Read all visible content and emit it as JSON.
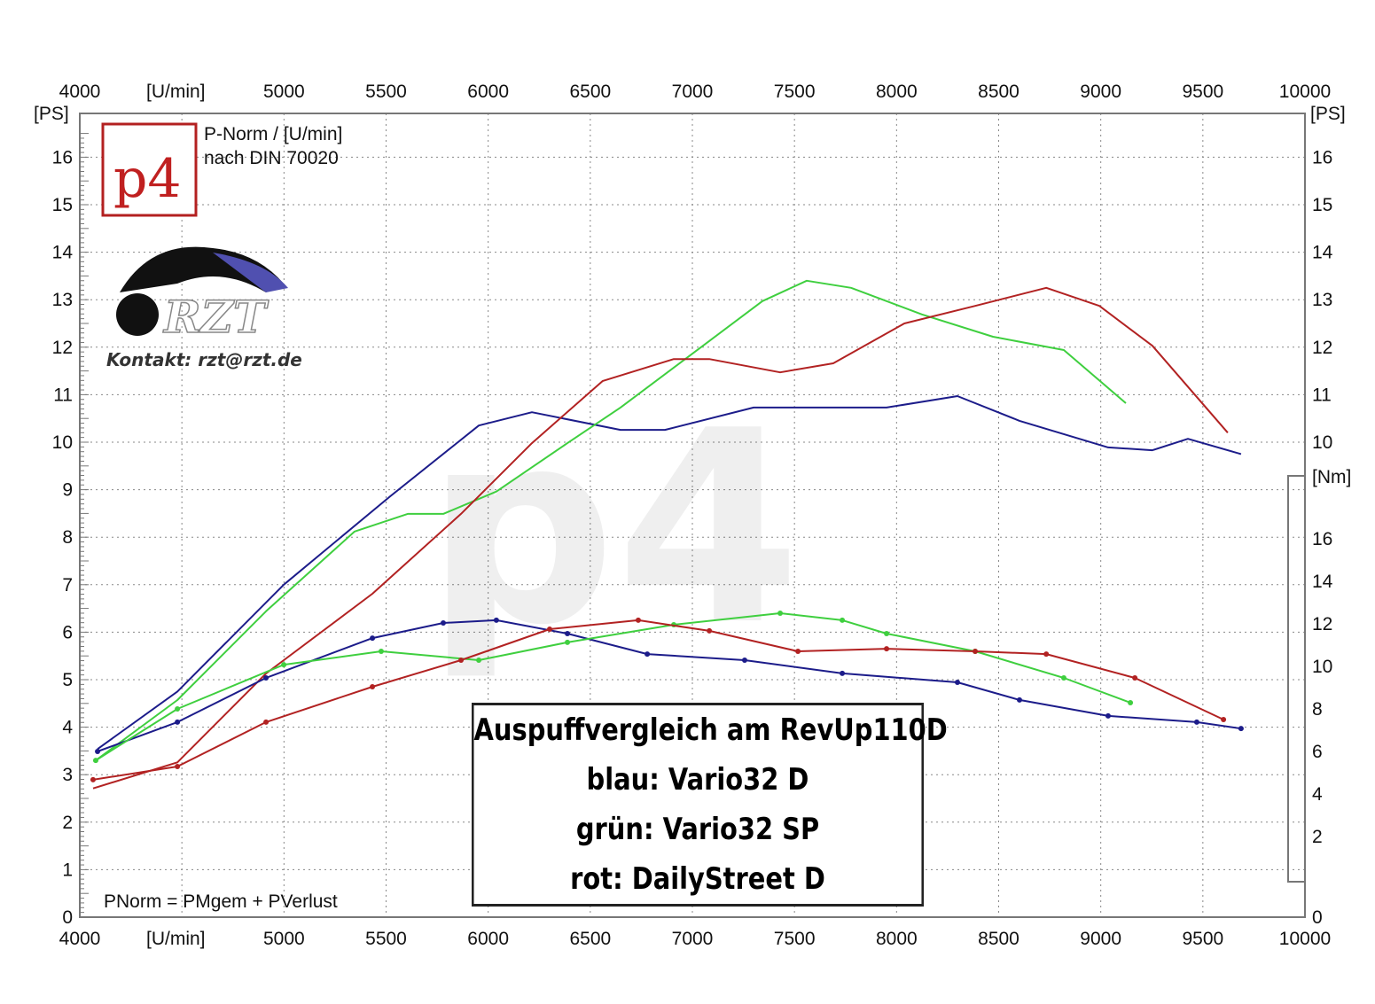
{
  "chart_data": {
    "type": "line",
    "title": "Auspuffvergleich am RevUp110D",
    "xlabel": "[U/min]",
    "ylabel": "[PS]",
    "y2label": "[Nm]",
    "xlim": [
      4000,
      10000
    ],
    "ylim": [
      0,
      16.5
    ],
    "y2lim": [
      0,
      18
    ],
    "xticks": [
      4000,
      5000,
      5500,
      6000,
      6500,
      7000,
      7500,
      8000,
      8500,
      9000,
      9500,
      10000
    ],
    "yticks": [
      0,
      1,
      2,
      3,
      4,
      5,
      6,
      7,
      8,
      9,
      10,
      11,
      12,
      13,
      14,
      15,
      16
    ],
    "y2ticks": [
      2,
      4,
      6,
      8,
      10,
      12,
      14,
      16
    ],
    "grid": true,
    "legend": {
      "lines": [
        "Auspuffvergleich am RevUp110D",
        "blau: Vario32 D",
        "grün: Vario32 SP",
        "rot: DailyStreet D"
      ],
      "placement": "bottom-center"
    },
    "annotations": [
      "P-Norm / [U/min]",
      "nach DIN 70020",
      "PNorm = PMgem + PVerlust",
      "Kontakt: rzt@rzt.de"
    ],
    "logos": [
      "p4",
      "RZT"
    ],
    "series": [
      {
        "name": "Vario32 D Leistung",
        "color": "#1c1c8a",
        "axis": "PS",
        "markers": false,
        "x": [
          4087,
          4478,
          4999,
          5520,
          5954,
          6214,
          6648,
          6866,
          7300,
          7734,
          7951,
          8298,
          8602,
          9036,
          9253,
          9427,
          9687
        ],
        "y": [
          3.54,
          4.75,
          7.0,
          8.86,
          10.35,
          10.63,
          10.26,
          10.26,
          10.73,
          10.73,
          10.73,
          10.97,
          10.45,
          9.89,
          9.83,
          10.07,
          9.75
        ]
      },
      {
        "name": "Vario32 SP Leistung",
        "color": "#3fcf3f",
        "axis": "PS",
        "markers": false,
        "x": [
          4078,
          4478,
          4912,
          5346,
          5606,
          5780,
          6040,
          6388,
          6648,
          7083,
          7343,
          7560,
          7777,
          8124,
          8472,
          8819,
          9123
        ],
        "y": [
          3.3,
          4.57,
          6.44,
          8.12,
          8.49,
          8.49,
          8.96,
          9.98,
          10.73,
          12.13,
          12.97,
          13.4,
          13.25,
          12.69,
          12.22,
          11.94,
          10.82
        ]
      },
      {
        "name": "DailyStreet D Leistung",
        "color": "#b22222",
        "axis": "PS",
        "markers": false,
        "x": [
          4065,
          4478,
          4912,
          5433,
          5867,
          6214,
          6561,
          6909,
          7083,
          7430,
          7690,
          8038,
          8385,
          8733,
          8993,
          9253,
          9622
        ],
        "y": [
          2.71,
          3.26,
          5.13,
          6.81,
          8.49,
          9.98,
          11.29,
          11.75,
          11.75,
          11.47,
          11.66,
          12.5,
          12.87,
          13.25,
          12.87,
          12.03,
          10.2
        ]
      },
      {
        "name": "Vario32 D Drehmoment",
        "color": "#1c1c8a",
        "axis": "Nm",
        "markers": true,
        "x": [
          4087,
          4478,
          4912,
          5433,
          5780,
          6040,
          6388,
          6779,
          7256,
          7734,
          8298,
          8602,
          9036,
          9470,
          9687
        ],
        "y": [
          6.0,
          7.38,
          9.46,
          11.33,
          12.04,
          12.17,
          11.54,
          10.58,
          10.29,
          9.67,
          9.25,
          8.42,
          7.67,
          7.38,
          7.08
        ]
      },
      {
        "name": "Vario32 SP Drehmoment",
        "color": "#3fcf3f",
        "axis": "Nm",
        "markers": true,
        "x": [
          4078,
          4478,
          4999,
          5476,
          5954,
          6388,
          6909,
          7430,
          7734,
          7951,
          8385,
          8819,
          9145
        ],
        "y": [
          5.58,
          8.0,
          10.08,
          10.71,
          10.29,
          11.13,
          11.96,
          12.5,
          12.17,
          11.54,
          10.71,
          9.46,
          8.29
        ]
      },
      {
        "name": "DailyStreet D Drehmoment",
        "color": "#b22222",
        "axis": "Nm",
        "markers": true,
        "x": [
          4065,
          4478,
          4912,
          5433,
          5867,
          6301,
          6735,
          7083,
          7517,
          7951,
          8385,
          8733,
          9167,
          9601
        ],
        "y": [
          4.67,
          5.29,
          7.38,
          9.04,
          10.29,
          11.75,
          12.17,
          11.67,
          10.71,
          10.83,
          10.71,
          10.58,
          9.46,
          7.5
        ]
      }
    ]
  }
}
